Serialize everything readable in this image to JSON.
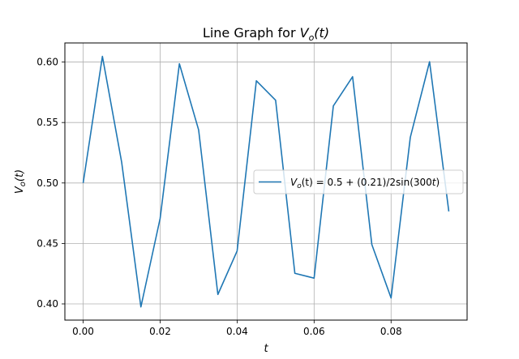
{
  "chart_data": {
    "type": "line",
    "title_text": "Line Graph for ",
    "title_var": "V",
    "title_sub": "o",
    "title_arg": "(t)",
    "xlabel": "t",
    "ylabel_var": "V",
    "ylabel_sub": "o",
    "ylabel_arg": "(t)",
    "xlim": [
      -0.00475,
      0.09975
    ],
    "ylim": [
      0.3866,
      0.6158
    ],
    "xticks": [
      0.0,
      0.02,
      0.04,
      0.06,
      0.08
    ],
    "xtick_labels": [
      "0.00",
      "0.02",
      "0.04",
      "0.06",
      "0.08"
    ],
    "yticks": [
      0.4,
      0.45,
      0.5,
      0.55,
      0.6
    ],
    "ytick_labels": [
      "0.40",
      "0.45",
      "0.50",
      "0.55",
      "0.60"
    ],
    "grid": true,
    "legend_position": "center-right",
    "series": [
      {
        "legend_var": "V",
        "legend_sub": "o",
        "legend_expr": "(t) = 0.5 + (0.21)/2sin(300",
        "legend_t": "t",
        "legend_close": ")",
        "color": "#1f77b4",
        "x": [
          0.0,
          0.005,
          0.01,
          0.015,
          0.02,
          0.025,
          0.03,
          0.035,
          0.04,
          0.045,
          0.05,
          0.055,
          0.06,
          0.065,
          0.07,
          0.075,
          0.08,
          0.085,
          0.09,
          0.095
        ],
        "y": [
          0.5,
          0.6047,
          0.5172,
          0.3975,
          0.4707,
          0.5986,
          0.5439,
          0.4078,
          0.4438,
          0.5845,
          0.5684,
          0.4253,
          0.4213,
          0.5637,
          0.5879,
          0.4491,
          0.4049,
          0.5378,
          0.6003,
          0.4765
        ]
      }
    ]
  }
}
